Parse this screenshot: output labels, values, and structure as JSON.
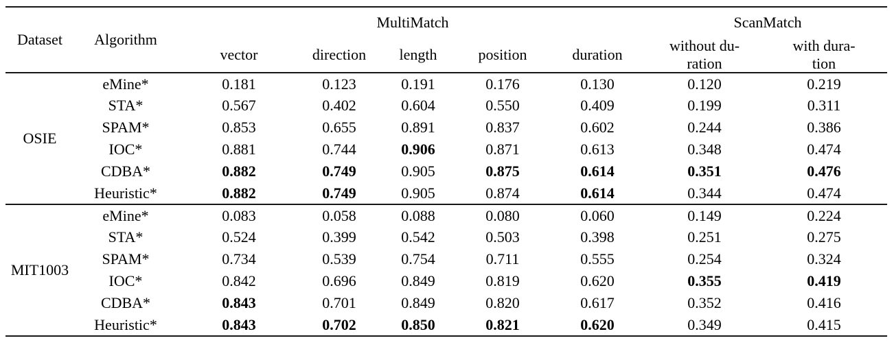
{
  "table": {
    "header": {
      "dataset": "Dataset",
      "algorithm": "Algorithm",
      "multimatch": "MultiMatch",
      "scanmatch": "ScanMatch",
      "multimatch_sub": [
        "vector",
        "direction",
        "length",
        "position",
        "duration"
      ],
      "scanmatch_sub": [
        {
          "line1": "without du-",
          "line2": "ration"
        },
        {
          "line1": "with dura-",
          "line2": "tion"
        }
      ]
    },
    "groups": [
      {
        "dataset": "OSIE",
        "rows": [
          {
            "algorithm": "eMine*",
            "values": [
              "0.181",
              "0.123",
              "0.191",
              "0.176",
              "0.130",
              "0.120",
              "0.219"
            ],
            "bold": [
              false,
              false,
              false,
              false,
              false,
              false,
              false
            ]
          },
          {
            "algorithm": "STA*",
            "values": [
              "0.567",
              "0.402",
              "0.604",
              "0.550",
              "0.409",
              "0.199",
              "0.311"
            ],
            "bold": [
              false,
              false,
              false,
              false,
              false,
              false,
              false
            ]
          },
          {
            "algorithm": "SPAM*",
            "values": [
              "0.853",
              "0.655",
              "0.891",
              "0.837",
              "0.602",
              "0.244",
              "0.386"
            ],
            "bold": [
              false,
              false,
              false,
              false,
              false,
              false,
              false
            ]
          },
          {
            "algorithm": "IOC*",
            "values": [
              "0.881",
              "0.744",
              "0.906",
              "0.871",
              "0.613",
              "0.348",
              "0.474"
            ],
            "bold": [
              false,
              false,
              true,
              false,
              false,
              false,
              false
            ]
          },
          {
            "algorithm": "CDBA*",
            "values": [
              "0.882",
              "0.749",
              "0.905",
              "0.875",
              "0.614",
              "0.351",
              "0.476"
            ],
            "bold": [
              true,
              true,
              false,
              true,
              true,
              true,
              true
            ]
          },
          {
            "algorithm": "Heuristic*",
            "values": [
              "0.882",
              "0.749",
              "0.905",
              "0.874",
              "0.614",
              "0.344",
              "0.474"
            ],
            "bold": [
              true,
              true,
              false,
              false,
              true,
              false,
              false
            ]
          }
        ]
      },
      {
        "dataset": "MIT1003",
        "rows": [
          {
            "algorithm": "eMine*",
            "values": [
              "0.083",
              "0.058",
              "0.088",
              "0.080",
              "0.060",
              "0.149",
              "0.224"
            ],
            "bold": [
              false,
              false,
              false,
              false,
              false,
              false,
              false
            ]
          },
          {
            "algorithm": "STA*",
            "values": [
              "0.524",
              "0.399",
              "0.542",
              "0.503",
              "0.398",
              "0.251",
              "0.275"
            ],
            "bold": [
              false,
              false,
              false,
              false,
              false,
              false,
              false
            ]
          },
          {
            "algorithm": "SPAM*",
            "values": [
              "0.734",
              "0.539",
              "0.754",
              "0.711",
              "0.555",
              "0.254",
              "0.324"
            ],
            "bold": [
              false,
              false,
              false,
              false,
              false,
              false,
              false
            ]
          },
          {
            "algorithm": "IOC*",
            "values": [
              "0.842",
              "0.696",
              "0.849",
              "0.819",
              "0.620",
              "0.355",
              "0.419"
            ],
            "bold": [
              false,
              false,
              false,
              false,
              false,
              true,
              true
            ]
          },
          {
            "algorithm": "CDBA*",
            "values": [
              "0.843",
              "0.701",
              "0.849",
              "0.820",
              "0.617",
              "0.352",
              "0.416"
            ],
            "bold": [
              true,
              false,
              false,
              false,
              false,
              false,
              false
            ]
          },
          {
            "algorithm": "Heuristic*",
            "values": [
              "0.843",
              "0.702",
              "0.850",
              "0.821",
              "0.620",
              "0.349",
              "0.415"
            ],
            "bold": [
              true,
              true,
              true,
              true,
              true,
              false,
              false
            ]
          }
        ]
      }
    ]
  }
}
